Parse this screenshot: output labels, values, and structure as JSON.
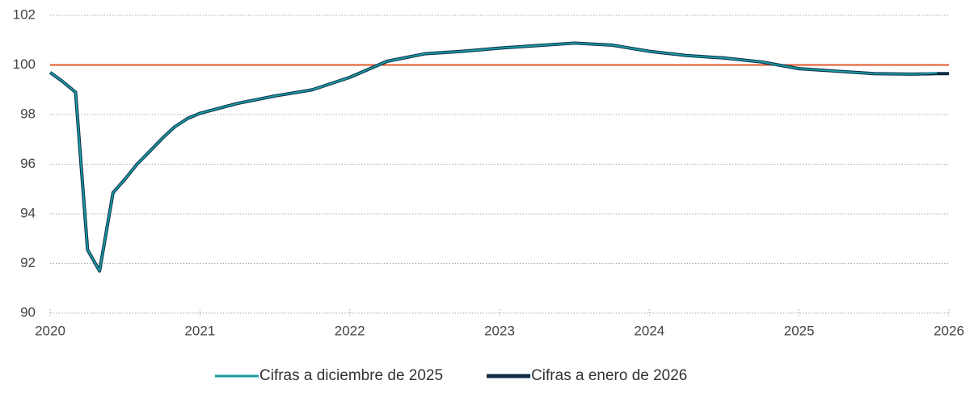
{
  "chart_data": {
    "type": "line",
    "x": [
      2020.0,
      2020.08,
      2020.17,
      2020.25,
      2020.33,
      2020.42,
      2020.5,
      2020.58,
      2020.67,
      2020.75,
      2020.83,
      2020.92,
      2021.0,
      2021.25,
      2021.5,
      2021.75,
      2022.0,
      2022.25,
      2022.5,
      2022.75,
      2023.0,
      2023.25,
      2023.5,
      2023.75,
      2024.0,
      2024.25,
      2024.5,
      2024.75,
      2025.0,
      2025.25,
      2025.5,
      2025.75,
      2025.92,
      2026.0
    ],
    "series": [
      {
        "name": "Cifras a enero de 2026",
        "color": "#0c2c47",
        "width": 4,
        "values": [
          99.7,
          99.35,
          98.9,
          92.55,
          91.7,
          94.85,
          95.4,
          96.0,
          96.55,
          97.05,
          97.5,
          97.85,
          98.05,
          98.45,
          98.75,
          99.0,
          99.5,
          100.15,
          100.45,
          100.55,
          100.68,
          100.78,
          100.88,
          100.8,
          100.55,
          100.38,
          100.28,
          100.12,
          99.85,
          99.75,
          99.65,
          99.63,
          99.65,
          99.65
        ]
      },
      {
        "name": "Cifras a diciembre de 2025",
        "color": "#1a9ba1",
        "width": 2,
        "values": [
          99.7,
          99.35,
          98.9,
          92.55,
          91.7,
          94.85,
          95.4,
          96.0,
          96.55,
          97.05,
          97.5,
          97.85,
          98.05,
          98.45,
          98.75,
          99.0,
          99.5,
          100.15,
          100.45,
          100.55,
          100.68,
          100.78,
          100.88,
          100.8,
          100.55,
          100.38,
          100.28,
          100.12,
          99.85,
          99.75,
          99.65,
          99.63,
          99.68,
          null
        ]
      }
    ],
    "reference_line": {
      "value": 100,
      "color": "#e0582a"
    },
    "xlim": [
      2020,
      2026
    ],
    "xticks": [
      2020,
      2021,
      2022,
      2023,
      2024,
      2025,
      2026
    ],
    "ylim": [
      90,
      102
    ],
    "yticks": [
      90,
      92,
      94,
      96,
      98,
      100,
      102
    ],
    "grid": true,
    "legend": "bottom"
  }
}
